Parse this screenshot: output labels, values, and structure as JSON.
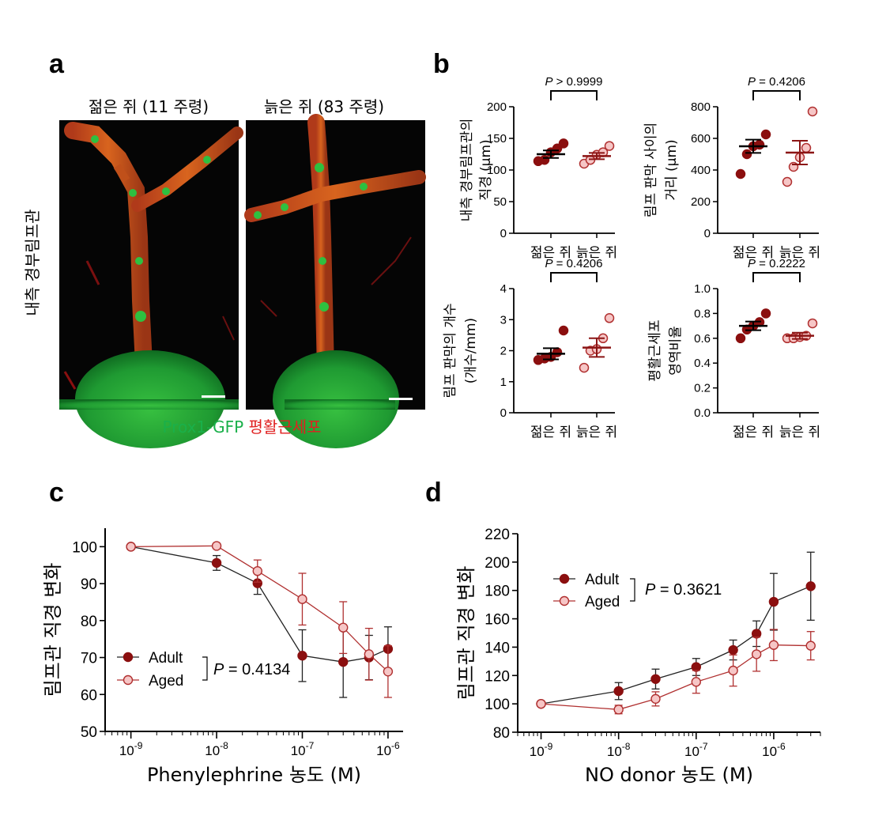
{
  "panel_labels": {
    "a": "a",
    "b": "b",
    "c": "c",
    "d": "d"
  },
  "panel_a": {
    "title_young": "젊은 쥐 (11 주령)",
    "title_old": "늙은 쥐 (83 주령)",
    "ylabel": "내측 경부림프관",
    "legend_green": "Prox1-GFP",
    "legend_red": "평활근세포",
    "colors": {
      "green": "#1ab04a",
      "red": "#e02020"
    }
  },
  "colors": {
    "adult": "#8b0f0f",
    "aged_fill": "#f6c6c6",
    "aged_line": "#b03030",
    "axis": "#000000"
  },
  "chart_data": [
    {
      "id": "b1",
      "type": "scatter",
      "ylabel_lines": [
        "내측 경부림프관의",
        "직경 (μm)"
      ],
      "categories": [
        "젊은 쥐",
        "늙은 쥐"
      ],
      "ylim": [
        0,
        200
      ],
      "yticks": [
        0,
        50,
        100,
        150,
        200
      ],
      "p_label": "P",
      "p_text": " > 0.9999",
      "series": [
        {
          "values": [
            114,
            116,
            128,
            134,
            142
          ],
          "mean": 125,
          "sem": 6
        },
        {
          "values": [
            110,
            116,
            124,
            128,
            138
          ],
          "mean": 122,
          "sem": 5
        }
      ]
    },
    {
      "id": "b2",
      "type": "scatter",
      "ylabel_lines": [
        "림프 판막 사이의",
        "거리 (μm)"
      ],
      "categories": [
        "젊은 쥐",
        "늙은 쥐"
      ],
      "ylim": [
        0,
        800
      ],
      "yticks": [
        0,
        200,
        400,
        600,
        800
      ],
      "p_label": "P",
      "p_text": " = 0.4206",
      "series": [
        {
          "values": [
            375,
            500,
            550,
            560,
            625
          ],
          "mean": 550,
          "sem": 42
        },
        {
          "values": [
            325,
            420,
            480,
            540,
            770
          ],
          "mean": 510,
          "sem": 75
        }
      ]
    },
    {
      "id": "b3",
      "type": "scatter",
      "ylabel_lines": [
        "림프 판막의 개수",
        "(개수/mm)"
      ],
      "categories": [
        "젊은 쥐",
        "늙은 쥐"
      ],
      "ylim": [
        0,
        4
      ],
      "yticks": [
        0,
        1,
        2,
        3,
        4
      ],
      "p_label": "P",
      "p_text": " = 0.4206",
      "series": [
        {
          "values": [
            1.7,
            1.75,
            1.8,
            1.95,
            2.65
          ],
          "mean": 1.9,
          "sem": 0.18
        },
        {
          "values": [
            1.45,
            2.0,
            2.05,
            2.4,
            3.05
          ],
          "mean": 2.1,
          "sem": 0.3
        }
      ]
    },
    {
      "id": "b4",
      "type": "scatter",
      "ylabel_lines": [
        "평활근세포",
        "영역비율"
      ],
      "categories": [
        "젊은 쥐",
        "늙은 쥐"
      ],
      "ylim": [
        0,
        1.0
      ],
      "yticks": [
        0.0,
        0.2,
        0.4,
        0.6,
        0.8,
        1.0
      ],
      "p_label": "P",
      "p_text": " = 0.2222",
      "series": [
        {
          "values": [
            0.6,
            0.67,
            0.7,
            0.73,
            0.8
          ],
          "mean": 0.7,
          "sem": 0.035
        },
        {
          "values": [
            0.6,
            0.6,
            0.61,
            0.62,
            0.72
          ],
          "mean": 0.62,
          "sem": 0.025
        }
      ]
    },
    {
      "id": "c",
      "type": "line",
      "xscale": "log",
      "xlabel": "Phenylephrine 농도 (M)",
      "ylabel": "림프관 직경 변화",
      "xlim": [
        5e-10,
        1.5e-06
      ],
      "ylim": [
        50,
        105
      ],
      "yticks": [
        50,
        60,
        70,
        80,
        90,
        100
      ],
      "xtick_exps": [
        -9,
        -8,
        -7,
        -6
      ],
      "p_label": "P",
      "p_text": " = 0.4134",
      "series": [
        {
          "name": "Adult",
          "x": [
            1e-09,
            1e-08,
            3e-08,
            1e-07,
            3e-07,
            6e-07,
            1e-06
          ],
          "y": [
            100,
            95.6,
            90.1,
            70.5,
            68.8,
            70.0,
            72.3
          ],
          "err": [
            0,
            2.0,
            3.0,
            7.0,
            9.6,
            6.0,
            6.0
          ]
        },
        {
          "name": "Aged",
          "x": [
            1e-09,
            1e-08,
            3e-08,
            1e-07,
            3e-07,
            6e-07,
            1e-06
          ],
          "y": [
            100,
            100.2,
            93.4,
            85.8,
            78.1,
            70.9,
            66.2
          ],
          "err": [
            0,
            0,
            3.0,
            7.0,
            7.0,
            7.0,
            7.0
          ]
        }
      ]
    },
    {
      "id": "d",
      "type": "line",
      "xscale": "log",
      "xlabel": "NO donor 농도 (M)",
      "ylabel": "림프관 직경 변화",
      "xlim": [
        5e-10,
        4e-06
      ],
      "ylim": [
        80,
        220
      ],
      "yticks": [
        80,
        100,
        120,
        140,
        160,
        180,
        200,
        220
      ],
      "xtick_exps": [
        -9,
        -8,
        -7,
        -6
      ],
      "p_label": "P",
      "p_text": " = 0.3621",
      "series": [
        {
          "name": "Adult",
          "x": [
            1e-09,
            1e-08,
            3e-08,
            1e-07,
            3e-07,
            6e-07,
            1e-06,
            3e-06
          ],
          "y": [
            100,
            109,
            117.5,
            126,
            138,
            149.5,
            172,
            183
          ],
          "err": [
            0,
            6,
            7,
            6,
            7,
            9,
            20,
            24
          ]
        },
        {
          "name": "Aged",
          "x": [
            1e-09,
            1e-08,
            3e-08,
            1e-07,
            3e-07,
            6e-07,
            1e-06,
            3e-06
          ],
          "y": [
            100,
            96,
            103.5,
            115.5,
            123.5,
            135,
            141.5,
            141
          ],
          "err": [
            0,
            3,
            5,
            8,
            11,
            12,
            11,
            10
          ]
        }
      ]
    }
  ]
}
